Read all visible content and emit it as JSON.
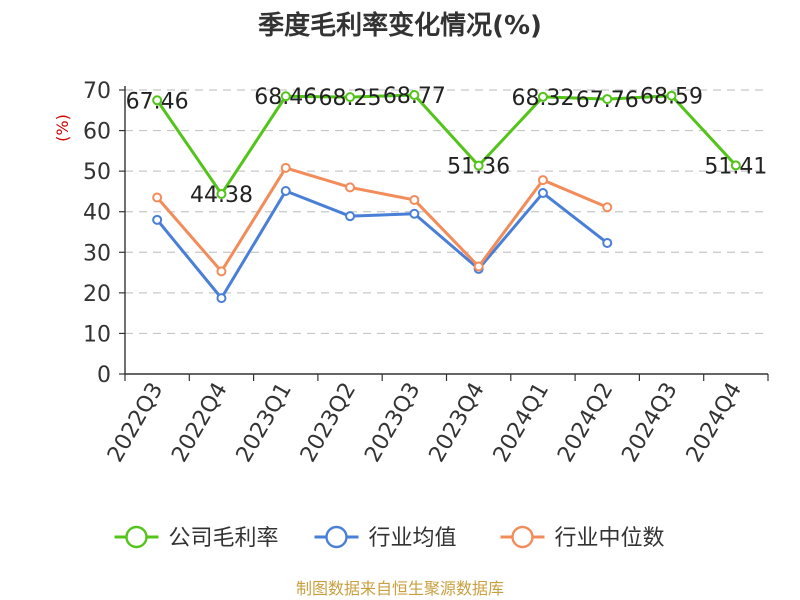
{
  "chart_data": {
    "type": "line",
    "title": "季度毛利率变化情况(%)",
    "ylabel": "(%)",
    "ylim": [
      0,
      70
    ],
    "yticks": [
      0,
      10,
      20,
      30,
      40,
      50,
      60,
      70
    ],
    "grid": true,
    "legend_position": "bottom",
    "categories": [
      "2022Q3",
      "2022Q4",
      "2023Q1",
      "2023Q2",
      "2023Q3",
      "2023Q4",
      "2024Q1",
      "2024Q2",
      "2024Q3",
      "2024Q4"
    ],
    "series": [
      {
        "name": "公司毛利率",
        "color": "#52c41a",
        "values": [
          67.46,
          44.38,
          68.46,
          68.25,
          68.77,
          51.36,
          68.32,
          67.76,
          68.59,
          51.41
        ],
        "labels": [
          "67.46",
          "44.38",
          "68.46",
          "68.25",
          "68.77",
          "51.36",
          "68.32",
          "67.76",
          "68.59",
          "51.41"
        ]
      },
      {
        "name": "行业均值",
        "color": "#4a7fd8",
        "values": [
          38.0,
          18.7,
          45.1,
          38.9,
          39.5,
          25.9,
          44.6,
          32.3,
          null,
          null
        ]
      },
      {
        "name": "行业中位数",
        "color": "#f28c5a",
        "values": [
          43.5,
          25.3,
          50.8,
          46.0,
          42.9,
          26.5,
          47.8,
          41.1,
          null,
          null
        ]
      }
    ]
  },
  "source": "制图数据来自恒生聚源数据库"
}
